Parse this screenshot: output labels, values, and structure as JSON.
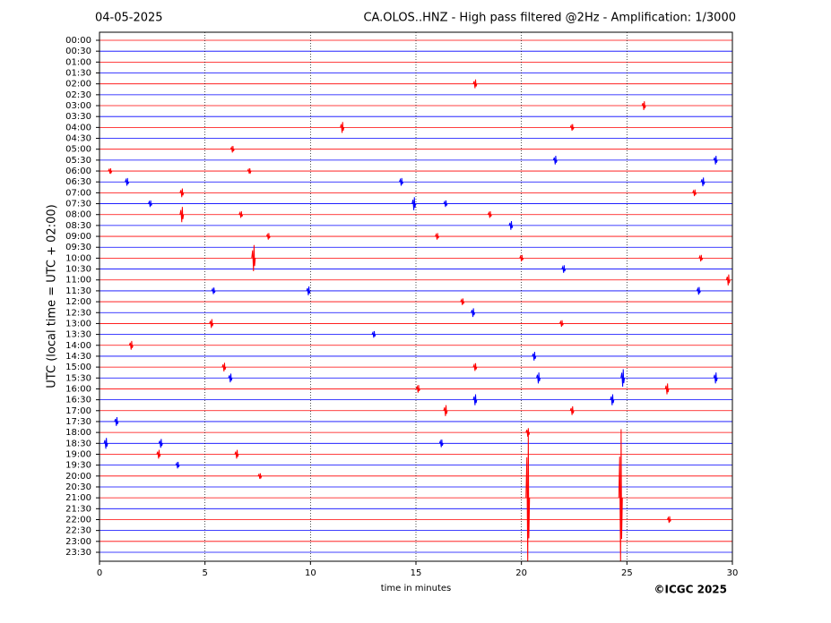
{
  "chart_data": {
    "type": "seismogram",
    "date": "04-05-2025",
    "title": "CA.OLOS..HNZ - High pass filtered @2Hz - Amplification: 1/3000",
    "ylabel": "UTC (local time = UTC + 02:00)",
    "xlabel": "time in minutes",
    "copyright": "©ICGC 2025",
    "xlim": [
      0,
      30
    ],
    "xticks": [
      0,
      5,
      10,
      15,
      20,
      25,
      30
    ],
    "grid": true,
    "colors": [
      "#ff0000",
      "#0000ff"
    ],
    "categories": [
      "00:00",
      "00:30",
      "01:00",
      "01:30",
      "02:00",
      "02:30",
      "03:00",
      "03:30",
      "04:00",
      "04:30",
      "05:00",
      "05:30",
      "06:00",
      "06:30",
      "07:00",
      "07:30",
      "08:00",
      "08:30",
      "09:00",
      "09:30",
      "10:00",
      "10:30",
      "11:00",
      "11:30",
      "12:00",
      "12:30",
      "13:00",
      "13:30",
      "14:00",
      "14:30",
      "15:00",
      "15:30",
      "16:00",
      "16:30",
      "17:00",
      "17:30",
      "18:00",
      "18:30",
      "19:00",
      "19:30",
      "20:00",
      "20:30",
      "21:00",
      "21:30",
      "22:00",
      "22:30",
      "23:00",
      "23:30"
    ],
    "events": [
      {
        "row": 4,
        "minute": 17.8,
        "amplitude": 0.4
      },
      {
        "row": 6,
        "minute": 25.8,
        "amplitude": 0.4
      },
      {
        "row": 8,
        "minute": 11.5,
        "amplitude": 0.5
      },
      {
        "row": 8,
        "minute": 22.4,
        "amplitude": 0.3
      },
      {
        "row": 10,
        "minute": 6.3,
        "amplitude": 0.3
      },
      {
        "row": 11,
        "minute": 21.6,
        "amplitude": 0.4
      },
      {
        "row": 11,
        "minute": 29.2,
        "amplitude": 0.4
      },
      {
        "row": 12,
        "minute": 0.5,
        "amplitude": 0.25
      },
      {
        "row": 12,
        "minute": 7.1,
        "amplitude": 0.25
      },
      {
        "row": 13,
        "minute": 1.3,
        "amplitude": 0.35
      },
      {
        "row": 13,
        "minute": 14.3,
        "amplitude": 0.35
      },
      {
        "row": 13,
        "minute": 28.6,
        "amplitude": 0.4
      },
      {
        "row": 14,
        "minute": 3.9,
        "amplitude": 0.4
      },
      {
        "row": 14,
        "minute": 28.2,
        "amplitude": 0.3
      },
      {
        "row": 15,
        "minute": 2.4,
        "amplitude": 0.3
      },
      {
        "row": 15,
        "minute": 14.9,
        "amplitude": 0.6
      },
      {
        "row": 15,
        "minute": 16.4,
        "amplitude": 0.3
      },
      {
        "row": 16,
        "minute": 3.9,
        "amplitude": 0.7
      },
      {
        "row": 16,
        "minute": 6.7,
        "amplitude": 0.3
      },
      {
        "row": 16,
        "minute": 18.5,
        "amplitude": 0.3
      },
      {
        "row": 17,
        "minute": 19.5,
        "amplitude": 0.4
      },
      {
        "row": 18,
        "minute": 8,
        "amplitude": 0.3
      },
      {
        "row": 18,
        "minute": 16,
        "amplitude": 0.3
      },
      {
        "row": 20,
        "minute": 7.3,
        "amplitude": 1.2
      },
      {
        "row": 20,
        "minute": 20,
        "amplitude": 0.3
      },
      {
        "row": 20,
        "minute": 28.5,
        "amplitude": 0.3
      },
      {
        "row": 21,
        "minute": 22,
        "amplitude": 0.35
      },
      {
        "row": 22,
        "minute": 29.8,
        "amplitude": 0.5
      },
      {
        "row": 23,
        "minute": 5.4,
        "amplitude": 0.3
      },
      {
        "row": 23,
        "minute": 9.9,
        "amplitude": 0.4
      },
      {
        "row": 23,
        "minute": 28.4,
        "amplitude": 0.35
      },
      {
        "row": 24,
        "minute": 17.2,
        "amplitude": 0.3
      },
      {
        "row": 25,
        "minute": 17.7,
        "amplitude": 0.4
      },
      {
        "row": 26,
        "minute": 5.3,
        "amplitude": 0.4
      },
      {
        "row": 26,
        "minute": 21.9,
        "amplitude": 0.3
      },
      {
        "row": 27,
        "minute": 13,
        "amplitude": 0.3
      },
      {
        "row": 28,
        "minute": 1.5,
        "amplitude": 0.4
      },
      {
        "row": 29,
        "minute": 20.6,
        "amplitude": 0.4
      },
      {
        "row": 30,
        "minute": 5.9,
        "amplitude": 0.4
      },
      {
        "row": 30,
        "minute": 17.8,
        "amplitude": 0.35
      },
      {
        "row": 31,
        "minute": 6.2,
        "amplitude": 0.4
      },
      {
        "row": 31,
        "minute": 20.8,
        "amplitude": 0.5
      },
      {
        "row": 31,
        "minute": 24.8,
        "amplitude": 0.8
      },
      {
        "row": 31,
        "minute": 29.2,
        "amplitude": 0.5
      },
      {
        "row": 32,
        "minute": 15.1,
        "amplitude": 0.35
      },
      {
        "row": 32,
        "minute": 26.9,
        "amplitude": 0.5
      },
      {
        "row": 33,
        "minute": 17.8,
        "amplitude": 0.5
      },
      {
        "row": 33,
        "minute": 24.3,
        "amplitude": 0.5
      },
      {
        "row": 34,
        "minute": 16.4,
        "amplitude": 0.5
      },
      {
        "row": 34,
        "minute": 22.4,
        "amplitude": 0.4
      },
      {
        "row": 35,
        "minute": 0.8,
        "amplitude": 0.4
      },
      {
        "row": 36,
        "minute": 20.3,
        "amplitude": 0.4
      },
      {
        "row": 37,
        "minute": 0.3,
        "amplitude": 0.5
      },
      {
        "row": 37,
        "minute": 2.9,
        "amplitude": 0.4
      },
      {
        "row": 37,
        "minute": 16.2,
        "amplitude": 0.35
      },
      {
        "row": 38,
        "minute": 2.8,
        "amplitude": 0.4
      },
      {
        "row": 38,
        "minute": 6.5,
        "amplitude": 0.4
      },
      {
        "row": 39,
        "minute": 3.7,
        "amplitude": 0.3
      },
      {
        "row": 40,
        "minute": 7.6,
        "amplitude": 0.25
      },
      {
        "row": 42,
        "minute": 20.3,
        "amplitude": 6.2
      },
      {
        "row": 42,
        "minute": 24.7,
        "amplitude": 6.3
      },
      {
        "row": 44,
        "minute": 27,
        "amplitude": 0.3
      }
    ]
  }
}
